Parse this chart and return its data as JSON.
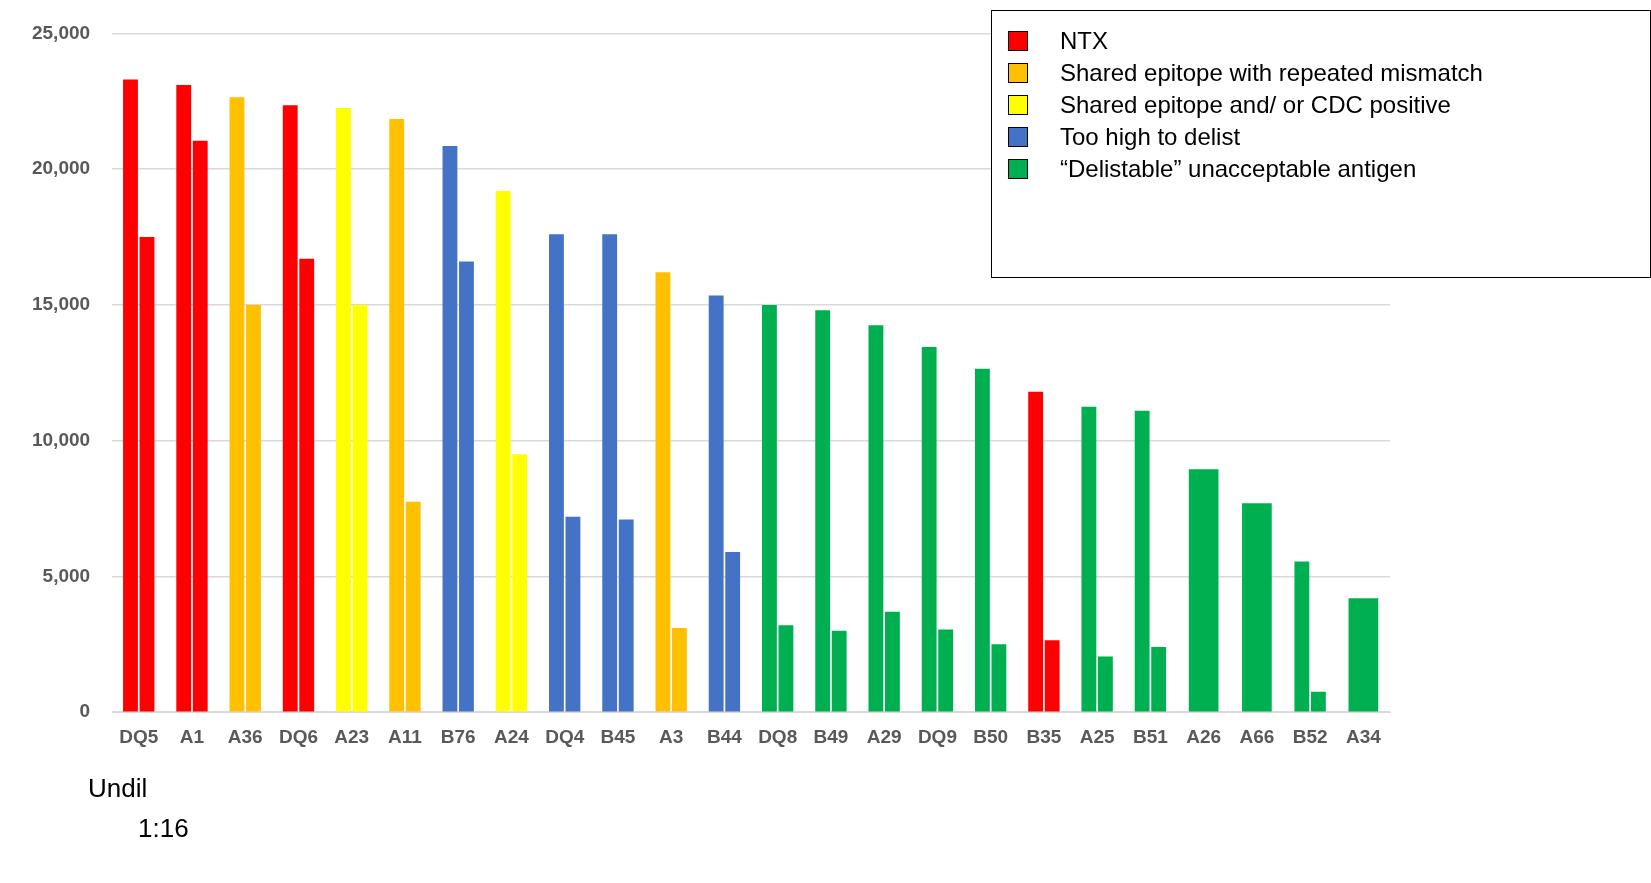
{
  "chart_data": {
    "type": "bar",
    "categories": [
      "DQ5",
      "A1",
      "A36",
      "DQ6",
      "A23",
      "A11",
      "B76",
      "A24",
      "DQ4",
      "B45",
      "A3",
      "B44",
      "DQ8",
      "B49",
      "A29",
      "DQ9",
      "B50",
      "B35",
      "A25",
      "B51",
      "A26",
      "A66",
      "B52",
      "A34"
    ],
    "series": [
      {
        "name": "NTX",
        "color": "#ff0000",
        "values": [
          23300,
          23100,
          null,
          22350,
          null,
          null,
          null,
          null,
          null,
          null,
          null,
          null,
          null,
          null,
          null,
          null,
          null,
          11800,
          null,
          null,
          null,
          null,
          null,
          null
        ]
      },
      {
        "color": "#ff0000",
        "values": [
          17500,
          21050,
          null,
          16700,
          null,
          null,
          null,
          null,
          null,
          null,
          null,
          null,
          null,
          null,
          null,
          null,
          null,
          2650,
          null,
          null,
          null,
          null,
          null,
          null
        ]
      },
      {
        "name": "Shared epitope with repeated mismatch",
        "color": "#ffc000",
        "values": [
          null,
          null,
          22650,
          null,
          null,
          21850,
          null,
          null,
          null,
          null,
          16200,
          null,
          null,
          null,
          null,
          null,
          null,
          null,
          null,
          null,
          null,
          null,
          null,
          null
        ]
      },
      {
        "color": "#ffc000",
        "values": [
          null,
          null,
          15000,
          null,
          null,
          7750,
          null,
          null,
          null,
          null,
          3100,
          null,
          null,
          null,
          null,
          null,
          null,
          null,
          null,
          null,
          null,
          null,
          null,
          null
        ]
      },
      {
        "name": "Shared epitope and/ or CDC positive",
        "color": "#ffff00",
        "values": [
          null,
          null,
          null,
          null,
          22250,
          null,
          null,
          19200,
          null,
          null,
          null,
          null,
          null,
          null,
          null,
          null,
          null,
          null,
          null,
          null,
          null,
          null,
          null,
          null
        ]
      },
      {
        "color": "#ffff00",
        "values": [
          null,
          null,
          null,
          null,
          15000,
          null,
          null,
          9500,
          null,
          null,
          null,
          null,
          null,
          null,
          null,
          null,
          null,
          null,
          null,
          null,
          null,
          null,
          null,
          null
        ]
      },
      {
        "name": "Too high to delist",
        "color": "#4472c4",
        "values": [
          null,
          null,
          null,
          null,
          null,
          null,
          20850,
          null,
          17600,
          17600,
          null,
          15350,
          null,
          null,
          null,
          null,
          null,
          null,
          null,
          null,
          null,
          null,
          null,
          null
        ]
      },
      {
        "color": "#4472c4",
        "values": [
          null,
          null,
          null,
          null,
          null,
          null,
          16600,
          null,
          7200,
          7100,
          null,
          5900,
          null,
          null,
          null,
          null,
          null,
          null,
          null,
          null,
          null,
          null,
          null,
          null
        ]
      },
      {
        "name": "“Delistable” unacceptable antigen",
        "color": "#00b050",
        "values": [
          null,
          null,
          null,
          null,
          null,
          null,
          null,
          null,
          null,
          null,
          null,
          null,
          15000,
          14800,
          14250,
          13450,
          12650,
          null,
          11250,
          11100,
          8950,
          7700,
          5550,
          4200
        ]
      },
      {
        "color": "#00b050",
        "values": [
          null,
          null,
          null,
          null,
          null,
          null,
          null,
          null,
          null,
          null,
          null,
          null,
          3200,
          3000,
          3700,
          3050,
          2500,
          null,
          2050,
          2400,
          null,
          null,
          750,
          null
        ]
      }
    ],
    "ylim": [
      0,
      25000
    ],
    "yticks": [
      {
        "value": 0,
        "label": "0"
      },
      {
        "value": 5000,
        "label": "5,000"
      },
      {
        "value": 10000,
        "label": "10,000"
      },
      {
        "value": 15000,
        "label": "15,000"
      },
      {
        "value": 20000,
        "label": "20,000"
      },
      {
        "value": 25000,
        "label": "25,000"
      }
    ],
    "grid": "y",
    "legend": "top right",
    "annotations": [
      "Undil",
      "1:16"
    ]
  }
}
